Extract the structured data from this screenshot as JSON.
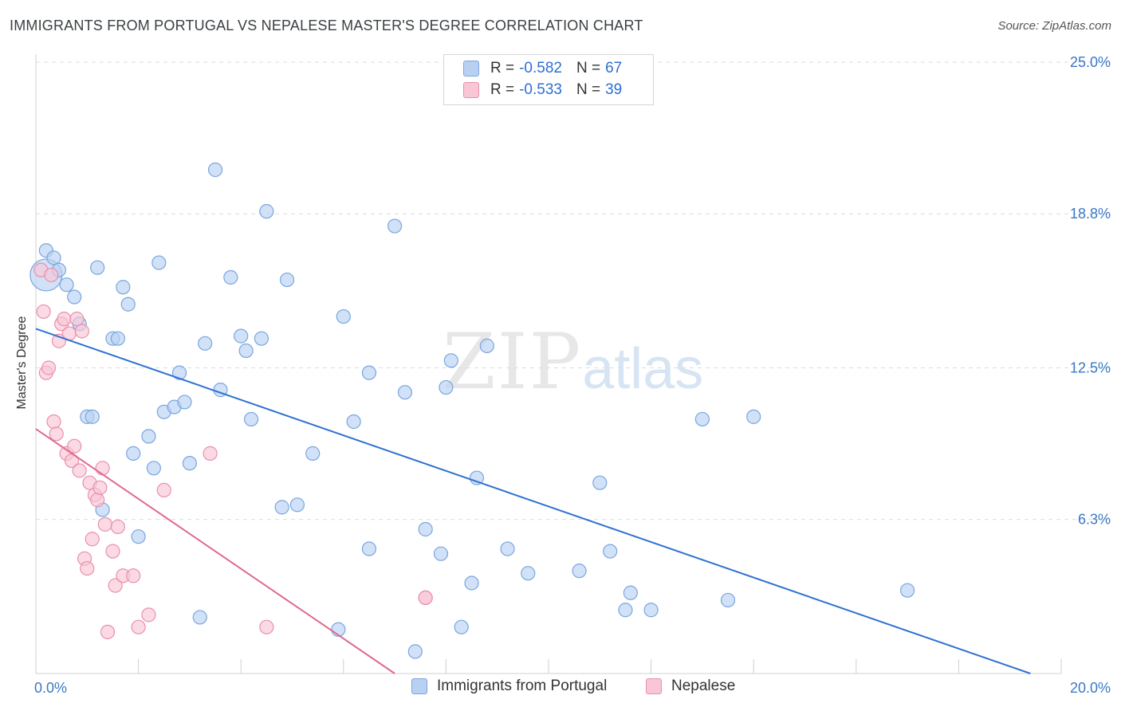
{
  "header": {
    "title": "IMMIGRANTS FROM PORTUGAL VS NEPALESE MASTER'S DEGREE CORRELATION CHART",
    "source": "Source: ZipAtlas.com"
  },
  "watermark": {
    "zip": "ZIP",
    "atlas": "atlas"
  },
  "legend": {
    "rows": [
      {
        "r_label": "R =",
        "r_value": "-0.582",
        "n_label": "N =",
        "n_value": "67"
      },
      {
        "r_label": "R =",
        "r_value": "-0.533",
        "n_label": "N =",
        "n_value": "39"
      }
    ]
  },
  "bottom_legend": {
    "series1": "Immigrants from Portugal",
    "series2": "Nepalese"
  },
  "colors": {
    "blue_fill": "#b8d1f3",
    "blue_stroke": "#7aa6de",
    "blue_line": "#2f72d0",
    "pink_fill": "#f9c6d6",
    "pink_stroke": "#e890ae",
    "pink_line": "#e06890",
    "grid": "#dcdcdc",
    "tick_text": "#3a78c4"
  },
  "chart_data": {
    "type": "scatter",
    "title": "IMMIGRANTS FROM PORTUGAL VS NEPALESE MASTER'S DEGREE CORRELATION CHART",
    "xlabel": "",
    "ylabel": "Master's Degree",
    "xlim": [
      0,
      20
    ],
    "ylim": [
      0,
      25
    ],
    "x_tick_labels": [
      "0.0%",
      "20.0%"
    ],
    "y_ticks": [
      6.3,
      12.5,
      18.8,
      25.0
    ],
    "y_tick_labels": [
      "6.3%",
      "12.5%",
      "18.8%",
      "25.0%"
    ],
    "grid": true,
    "legend_position": "top-center",
    "series": [
      {
        "name": "Immigrants from Portugal",
        "r": -0.582,
        "n": 67,
        "trend": {
          "x": [
            0,
            19.4
          ],
          "y": [
            14.1,
            0
          ]
        },
        "points": [
          [
            0.2,
            16.3,
            "big"
          ],
          [
            0.2,
            17.3
          ],
          [
            0.35,
            17.0
          ],
          [
            0.45,
            16.5
          ],
          [
            0.6,
            15.9
          ],
          [
            0.75,
            15.4
          ],
          [
            0.85,
            14.3
          ],
          [
            1.0,
            10.5
          ],
          [
            1.1,
            10.5
          ],
          [
            1.2,
            16.6
          ],
          [
            1.3,
            6.7
          ],
          [
            1.5,
            13.7
          ],
          [
            1.6,
            13.7
          ],
          [
            1.7,
            15.8
          ],
          [
            1.8,
            15.1
          ],
          [
            1.9,
            9.0
          ],
          [
            2.0,
            5.6
          ],
          [
            2.2,
            9.7
          ],
          [
            2.3,
            8.4
          ],
          [
            2.4,
            16.8
          ],
          [
            2.5,
            10.7
          ],
          [
            2.7,
            10.9
          ],
          [
            2.8,
            12.3
          ],
          [
            2.9,
            11.1
          ],
          [
            3.0,
            8.6
          ],
          [
            3.2,
            2.3
          ],
          [
            3.3,
            13.5
          ],
          [
            3.5,
            20.6
          ],
          [
            3.6,
            11.6
          ],
          [
            3.8,
            16.2
          ],
          [
            4.0,
            13.8
          ],
          [
            4.1,
            13.2
          ],
          [
            4.2,
            10.4
          ],
          [
            4.4,
            13.7
          ],
          [
            4.5,
            18.9
          ],
          [
            4.8,
            6.8
          ],
          [
            4.9,
            16.1
          ],
          [
            5.1,
            6.9
          ],
          [
            5.4,
            9.0
          ],
          [
            5.9,
            1.8
          ],
          [
            6.0,
            14.6
          ],
          [
            6.2,
            10.3
          ],
          [
            6.5,
            12.3
          ],
          [
            6.5,
            5.1
          ],
          [
            7.0,
            18.3
          ],
          [
            7.2,
            11.5
          ],
          [
            7.4,
            0.9
          ],
          [
            7.6,
            5.9
          ],
          [
            7.9,
            4.9
          ],
          [
            8.0,
            11.7
          ],
          [
            8.1,
            12.8
          ],
          [
            8.3,
            1.9
          ],
          [
            8.5,
            3.7
          ],
          [
            8.6,
            8.0
          ],
          [
            8.8,
            13.4
          ],
          [
            9.2,
            5.1
          ],
          [
            9.6,
            4.1
          ],
          [
            10.6,
            4.2
          ],
          [
            11.0,
            7.8
          ],
          [
            11.2,
            5.0
          ],
          [
            11.5,
            2.6
          ],
          [
            11.6,
            3.3
          ],
          [
            12.0,
            2.6
          ],
          [
            13.0,
            10.4
          ],
          [
            13.5,
            3.0
          ],
          [
            14.0,
            10.5
          ],
          [
            17.0,
            3.4
          ]
        ]
      },
      {
        "name": "Nepalese",
        "r": -0.533,
        "n": 39,
        "trend": {
          "x": [
            0,
            7.0
          ],
          "y": [
            10.0,
            0
          ]
        },
        "points": [
          [
            0.1,
            16.5
          ],
          [
            0.15,
            14.8
          ],
          [
            0.2,
            12.3
          ],
          [
            0.25,
            12.5
          ],
          [
            0.35,
            10.3
          ],
          [
            0.4,
            9.8
          ],
          [
            0.45,
            13.6
          ],
          [
            0.5,
            14.3
          ],
          [
            0.55,
            14.5
          ],
          [
            0.6,
            9.0
          ],
          [
            0.65,
            13.9
          ],
          [
            0.7,
            8.7
          ],
          [
            0.75,
            9.3
          ],
          [
            0.8,
            14.5
          ],
          [
            0.85,
            8.3
          ],
          [
            0.9,
            14.0
          ],
          [
            0.95,
            4.7
          ],
          [
            1.0,
            4.3
          ],
          [
            1.05,
            7.8
          ],
          [
            1.1,
            5.5
          ],
          [
            1.15,
            7.3
          ],
          [
            1.2,
            7.1
          ],
          [
            1.25,
            7.6
          ],
          [
            1.3,
            8.4
          ],
          [
            1.35,
            6.1
          ],
          [
            1.4,
            1.7
          ],
          [
            1.5,
            5.0
          ],
          [
            1.55,
            3.6
          ],
          [
            1.6,
            6.0
          ],
          [
            1.7,
            4.0
          ],
          [
            1.9,
            4.0
          ],
          [
            2.0,
            1.9
          ],
          [
            2.2,
            2.4
          ],
          [
            2.5,
            7.5
          ],
          [
            3.4,
            9.0
          ],
          [
            4.5,
            1.9
          ],
          [
            7.6,
            3.1
          ],
          [
            7.6,
            3.1
          ],
          [
            0.3,
            16.3
          ]
        ]
      }
    ]
  }
}
